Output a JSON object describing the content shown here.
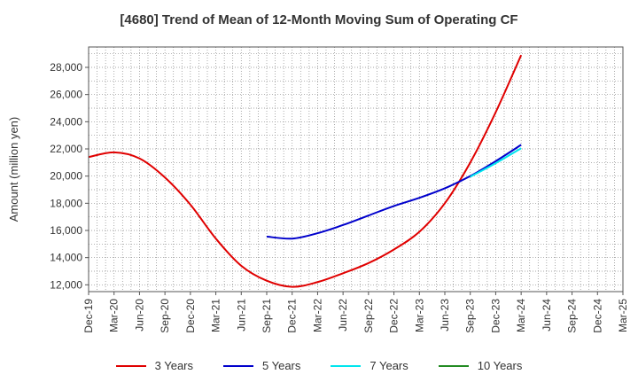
{
  "chart_data": {
    "type": "line",
    "title": "[4680]  Trend of Mean of 12-Month Moving Sum of Operating CF",
    "xlabel": "",
    "ylabel": "Amount (million yen)",
    "ylim": [
      11500,
      29500
    ],
    "yticks": [
      12000,
      14000,
      16000,
      18000,
      20000,
      22000,
      24000,
      26000,
      28000
    ],
    "categories": [
      "Dec-19",
      "Mar-20",
      "Jun-20",
      "Sep-20",
      "Dec-20",
      "Mar-21",
      "Jun-21",
      "Sep-21",
      "Dec-21",
      "Mar-22",
      "Jun-22",
      "Sep-22",
      "Dec-22",
      "Mar-23",
      "Jun-23",
      "Sep-23",
      "Dec-23",
      "Mar-24",
      "Jun-24",
      "Sep-24",
      "Dec-24",
      "Mar-25"
    ],
    "grid": true,
    "legend_position": "bottom",
    "series": [
      {
        "name": "3 Years",
        "color": "#e00000",
        "values": [
          21400,
          21750,
          21300,
          19900,
          17900,
          15400,
          13400,
          12300,
          11850,
          12200,
          12850,
          13600,
          14600,
          15900,
          18000,
          21000,
          24700,
          28900,
          null,
          null,
          null,
          null
        ]
      },
      {
        "name": "5 Years",
        "color": "#0000cc",
        "values": [
          null,
          null,
          null,
          null,
          null,
          null,
          null,
          15550,
          15400,
          15800,
          16400,
          17100,
          17800,
          18400,
          19100,
          20000,
          21100,
          22300,
          null,
          null,
          null,
          null
        ]
      },
      {
        "name": "7 Years",
        "color": "#00e5ee",
        "values": [
          null,
          null,
          null,
          null,
          null,
          null,
          null,
          null,
          null,
          null,
          null,
          null,
          null,
          null,
          null,
          19950,
          20950,
          22050,
          null,
          null,
          null,
          null
        ]
      },
      {
        "name": "10 Years",
        "color": "#228b22",
        "values": [
          null,
          null,
          null,
          null,
          null,
          null,
          null,
          null,
          null,
          null,
          null,
          null,
          null,
          null,
          null,
          null,
          null,
          null,
          null,
          null,
          null,
          null
        ]
      }
    ]
  }
}
